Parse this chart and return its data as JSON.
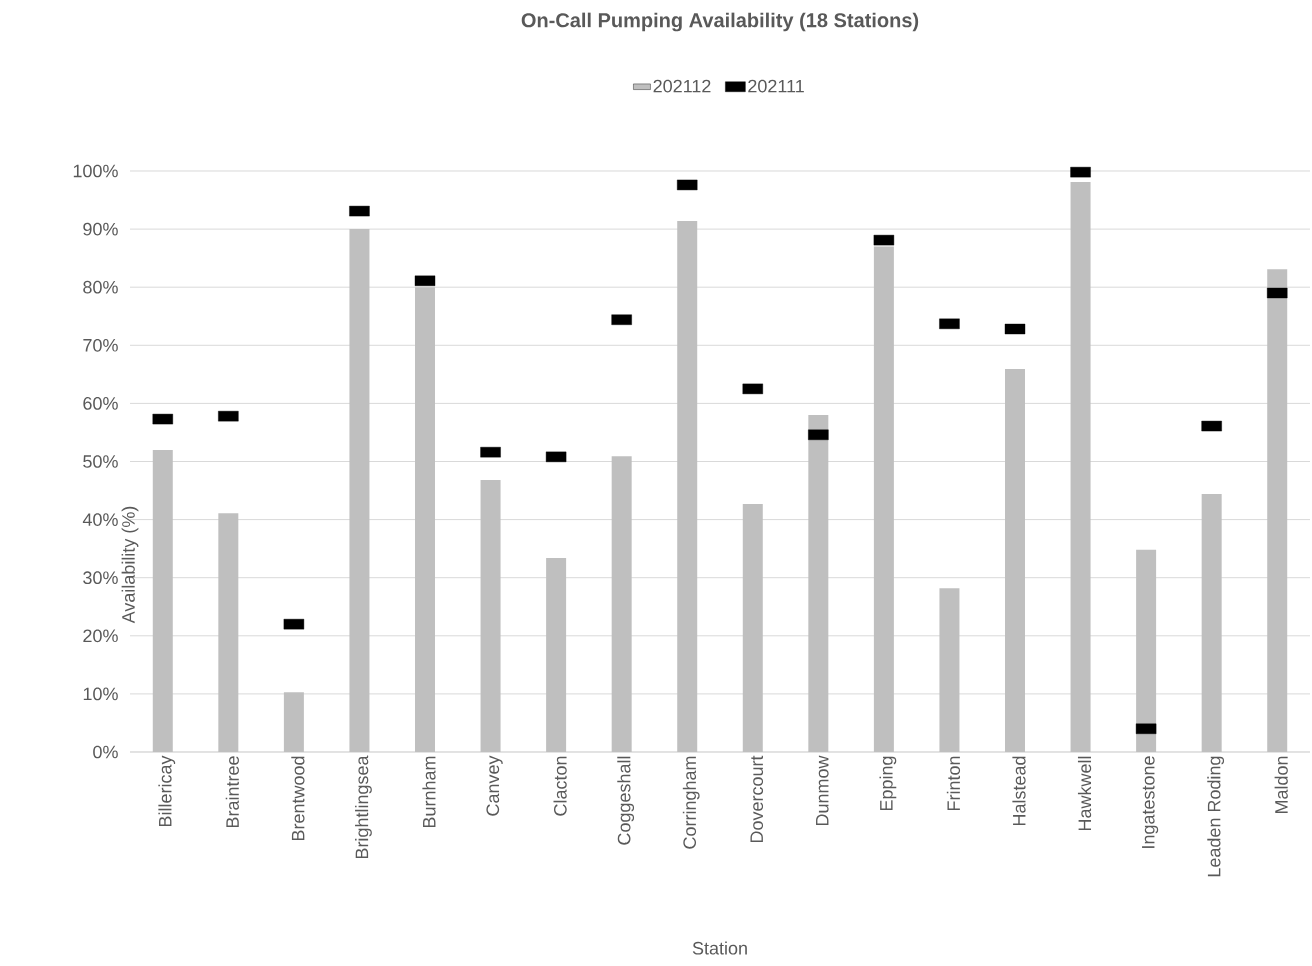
{
  "chart_data": {
    "type": "bar",
    "title": "On-Call Pumping Availability (18 Stations)",
    "xlabel": "Station",
    "ylabel": "Availability (%)",
    "categories": [
      "Billericay",
      "Braintree",
      "Brentwood",
      "Brightlingsea",
      "Burnham",
      "Canvey",
      "Clacton",
      "Coggeshall",
      "Corringham",
      "Dovercourt",
      "Dunmow",
      "Epping",
      "Frinton",
      "Halstead",
      "Hawkwell",
      "Ingatestone",
      "Leaden Roding",
      "Maldon"
    ],
    "series": [
      {
        "name": "202112",
        "type": "bar",
        "color": "#bfbfbf",
        "values": [
          52.0,
          41.1,
          10.3,
          90.0,
          80.0,
          46.8,
          33.4,
          50.9,
          91.4,
          42.7,
          58.0,
          87.0,
          28.2,
          65.9,
          98.1,
          34.8,
          44.4,
          83.1
        ]
      },
      {
        "name": "202111",
        "type": "scatter",
        "color": "#000000",
        "values": [
          57.3,
          57.8,
          22.0,
          93.1,
          81.1,
          51.6,
          50.8,
          74.4,
          97.6,
          62.5,
          54.6,
          88.1,
          73.7,
          72.8,
          99.8,
          4.0,
          56.1,
          79.0
        ]
      }
    ],
    "ylim": [
      0,
      100
    ],
    "yticks": [
      {
        "value": 0,
        "label": "0%"
      },
      {
        "value": 10,
        "label": "10%"
      },
      {
        "value": 20,
        "label": "20%"
      },
      {
        "value": 30,
        "label": "30%"
      },
      {
        "value": 40,
        "label": "40%"
      },
      {
        "value": 50,
        "label": "50%"
      },
      {
        "value": 60,
        "label": "60%"
      },
      {
        "value": 70,
        "label": "70%"
      },
      {
        "value": 80,
        "label": "80%"
      },
      {
        "value": 90,
        "label": "90%"
      },
      {
        "value": 100,
        "label": "100%"
      }
    ],
    "grid": "y",
    "legend": "top"
  }
}
